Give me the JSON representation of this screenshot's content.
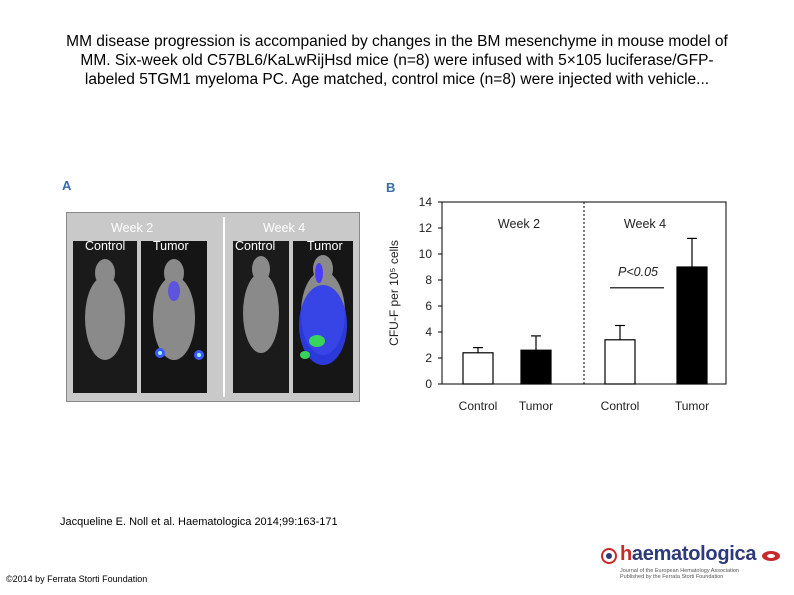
{
  "title_lines": [
    "MM disease progression is accompanied by changes in the BM mesenchyme in mouse model of",
    "MM. Six-week old C57BL6/KaLwRijHsd mice (n=8) were infused with 5×105 luciferase/GFP-",
    "labeled 5TGM1 myeloma PC. Age matched, control mice (n=8) were injected with vehicle..."
  ],
  "panel_a": {
    "letter": "A",
    "week2": "Week 2",
    "week4": "Week 4",
    "control": "Control",
    "tumor": "Tumor"
  },
  "chart_data": {
    "type": "bar",
    "panel_letter": "B",
    "categories": [
      "Control",
      "Tumor",
      "Control",
      "Tumor"
    ],
    "groups": [
      "Week 2",
      "Week 2",
      "Week 4",
      "Week 4"
    ],
    "values": [
      2.4,
      2.6,
      3.4,
      9.0
    ],
    "errors": [
      0.4,
      1.1,
      1.1,
      2.2
    ],
    "bar_fill": [
      "#ffffff",
      "#000000",
      "#ffffff",
      "#000000"
    ],
    "ylabel": "CFU-F per 10⁵ cells",
    "ylim": [
      0,
      14
    ],
    "yticks": [
      0,
      2,
      4,
      6,
      8,
      10,
      12,
      14
    ],
    "group_labels": [
      "Week 2",
      "Week 4"
    ],
    "annotation": "P<0.05"
  },
  "citation": "Jacqueline E. Noll et al. Haematologica 2014;99:163-171",
  "copyright": "©2014 by Ferrata Storti Foundation",
  "logo": {
    "word_h": "h",
    "word_rest": "aematologica",
    "subtitle_1": "Journal of the European Hematology Association",
    "subtitle_2": "Published by the Ferrata Storti Foundation"
  }
}
